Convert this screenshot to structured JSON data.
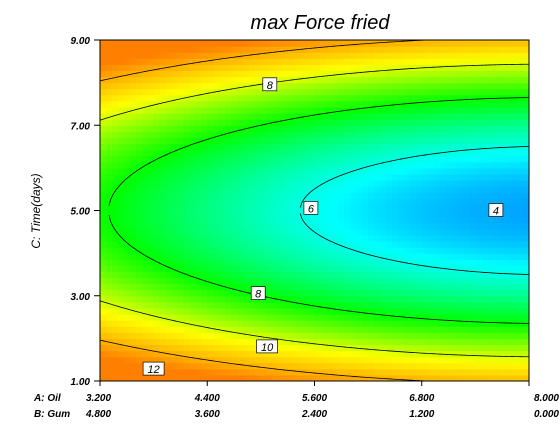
{
  "chart_data": {
    "type": "heatmap",
    "title": "max Force fried",
    "ylabel": "C: Time(days)",
    "x_axis_rows": [
      {
        "name": "A: Oil",
        "ticks": [
          "3.200",
          "4.400",
          "5.600",
          "6.800",
          "8.000"
        ]
      },
      {
        "name": "B: Gum",
        "ticks": [
          "4.800",
          "3.600",
          "2.400",
          "1.200",
          "0.000"
        ]
      }
    ],
    "x_primary_range": [
      3.2,
      8.0
    ],
    "y_ticks": [
      "1.00",
      "3.00",
      "5.00",
      "7.00",
      "9.00"
    ],
    "ylim": [
      1,
      9
    ],
    "colorscale": [
      "#0000ff",
      "#00ffff",
      "#00ff00",
      "#ffff00",
      "#ff8000"
    ],
    "response_range": [
      4,
      13
    ],
    "contour_levels": [
      4,
      6,
      8,
      8,
      10,
      12
    ],
    "contour_labels": [
      "8",
      "6",
      "4",
      "8",
      "10",
      "12"
    ],
    "grid": false
  }
}
